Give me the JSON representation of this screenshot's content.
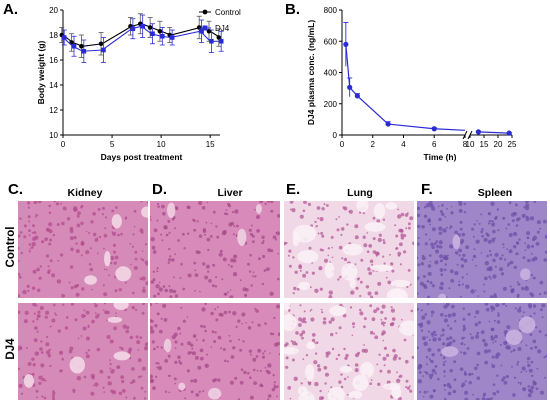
{
  "panel_labels": {
    "a": "A.",
    "b": "B.",
    "c": "C.",
    "d": "D.",
    "e": "E.",
    "f": "F."
  },
  "chart_data": [
    {
      "type": "line",
      "panel": "A.",
      "xlabel": "Days post treatment",
      "ylabel": "Body weight (g)",
      "xlim": [
        0,
        16
      ],
      "ylim": [
        10,
        20
      ],
      "xticks": [
        0,
        5,
        10,
        15
      ],
      "yticks": [
        10,
        12,
        14,
        16,
        18,
        20
      ],
      "legend_position": "top-right",
      "series": [
        {
          "name": "Control",
          "color": "#000000",
          "marker": "circle",
          "x": [
            0,
            1,
            2,
            4,
            7,
            8,
            9,
            10,
            11,
            14,
            15,
            16
          ],
          "y": [
            18.0,
            17.4,
            17.1,
            17.3,
            18.7,
            18.9,
            18.6,
            18.3,
            18.0,
            18.6,
            18.3,
            17.8
          ],
          "err": [
            0.6,
            0.7,
            0.9,
            0.9,
            0.7,
            0.8,
            0.8,
            0.8,
            0.6,
            0.9,
            0.8,
            0.7
          ]
        },
        {
          "name": "DJ4",
          "color": "#2b2bd6",
          "marker": "square",
          "x": [
            0,
            1,
            2,
            4,
            7,
            8,
            9,
            10,
            11,
            14,
            15,
            16
          ],
          "y": [
            17.8,
            17.1,
            16.7,
            16.8,
            18.5,
            18.7,
            18.1,
            17.9,
            17.8,
            18.3,
            17.5,
            17.5
          ],
          "err": [
            0.6,
            0.8,
            0.9,
            1.0,
            0.8,
            0.9,
            0.8,
            0.7,
            0.6,
            0.9,
            0.9,
            0.8
          ]
        }
      ]
    },
    {
      "type": "line",
      "panel": "B.",
      "xlabel": "Time (h)",
      "ylabel": "DJ4 plasma conc. (ng/mL)",
      "ylim": [
        0,
        800
      ],
      "yticks": [
        0,
        200,
        400,
        600,
        800
      ],
      "x_segments": [
        {
          "range": [
            0,
            8
          ],
          "ticks": [
            0,
            2,
            4,
            6,
            8
          ]
        },
        {
          "range": [
            10,
            25
          ],
          "ticks": [
            10,
            15,
            20,
            25
          ]
        }
      ],
      "grid": false,
      "series": [
        {
          "name": "DJ4",
          "color": "#2b2bd6",
          "marker": "circle",
          "x": [
            0.25,
            0.5,
            1,
            3,
            6,
            13,
            24
          ],
          "y": [
            580,
            305,
            250,
            70,
            40,
            20,
            12
          ],
          "err": [
            140,
            60,
            15,
            15,
            6,
            4,
            3
          ]
        }
      ]
    }
  ],
  "histology": {
    "row_labels": [
      "Control",
      "DJ4"
    ],
    "tissues": [
      {
        "letter": "C.",
        "name": "Kidney",
        "colors": [
          "#d58ab8",
          "#b14b8e",
          "#f3d6e6"
        ]
      },
      {
        "letter": "D.",
        "name": "Liver",
        "colors": [
          "#d88bba",
          "#a54a88",
          "#efcfe2"
        ]
      },
      {
        "letter": "E.",
        "name": "Lung",
        "colors": [
          "#f1d8e7",
          "#b45a98",
          "#fbf1f6"
        ]
      },
      {
        "letter": "F.",
        "name": "Spleen",
        "colors": [
          "#9f86c9",
          "#6e4fa6",
          "#c9b3df"
        ]
      }
    ]
  }
}
